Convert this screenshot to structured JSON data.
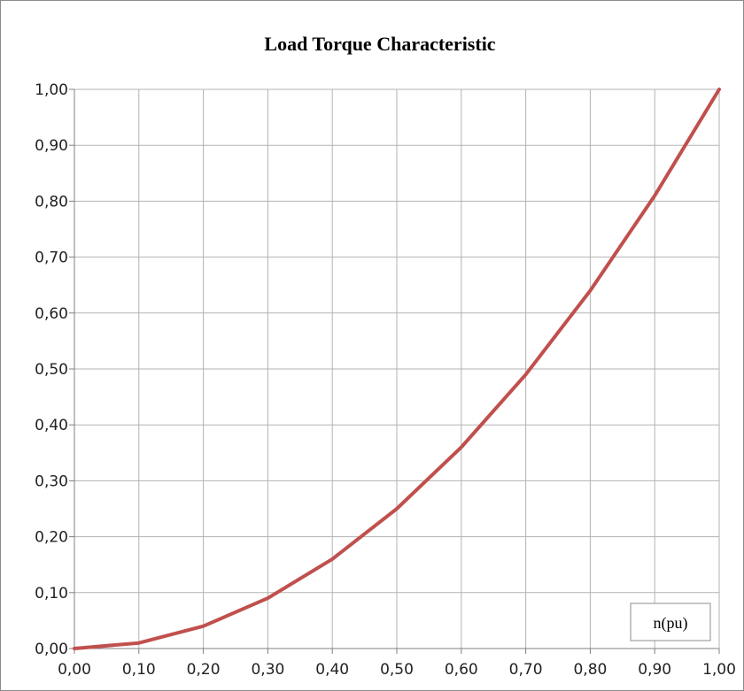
{
  "chart_data": {
    "type": "line",
    "title": "Load Torque Characteristic",
    "xlabel": "",
    "ylabel": "",
    "x": [
      0.0,
      0.1,
      0.2,
      0.3,
      0.4,
      0.5,
      0.6,
      0.7,
      0.8,
      0.9,
      1.0
    ],
    "series": [
      {
        "name": "n(pu)",
        "values": [
          0.0,
          0.01,
          0.04,
          0.09,
          0.16,
          0.25,
          0.36,
          0.49,
          0.64,
          0.81,
          1.0
        ],
        "color": "#c0504d"
      }
    ],
    "xlim": [
      0,
      1
    ],
    "ylim": [
      0,
      1
    ],
    "x_ticks": [
      "0,00",
      "0,10",
      "0,20",
      "0,30",
      "0,40",
      "0,50",
      "0,60",
      "0,70",
      "0,80",
      "0,90",
      "1,00"
    ],
    "y_ticks": [
      "0,00",
      "0,10",
      "0,20",
      "0,30",
      "0,40",
      "0,50",
      "0,60",
      "0,70",
      "0,80",
      "0,90",
      "1,00"
    ],
    "grid": true,
    "legend": {
      "position": "bottom-right",
      "entries": [
        "n(pu)"
      ]
    },
    "colors": {
      "grid": "#b3b3b3",
      "axis": "#808080",
      "line": "#c0504d"
    }
  }
}
